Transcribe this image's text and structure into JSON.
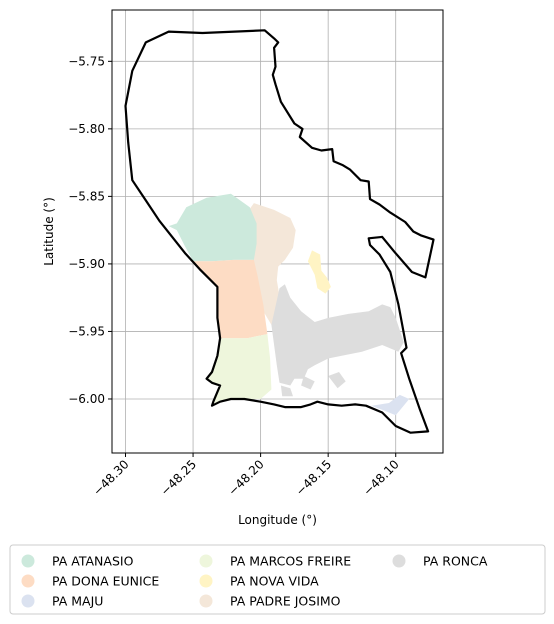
{
  "chart_data": {
    "type": "map",
    "title": "",
    "xlabel": "Longitude (°)",
    "ylabel": "Latitude (°)",
    "xlim": [
      -48.31,
      -48.065
    ],
    "ylim": [
      -6.04,
      -5.712
    ],
    "xticks": [
      {
        "value": -48.3,
        "label": "−48.30"
      },
      {
        "value": -48.25,
        "label": "−48.25"
      },
      {
        "value": -48.2,
        "label": "−48.20"
      },
      {
        "value": -48.15,
        "label": "−48.15"
      },
      {
        "value": -48.1,
        "label": "−48.10"
      }
    ],
    "yticks": [
      {
        "value": -5.75,
        "label": "−5.75"
      },
      {
        "value": -5.8,
        "label": "−5.80"
      },
      {
        "value": -5.85,
        "label": "−5.85"
      },
      {
        "value": -5.9,
        "label": "−5.90"
      },
      {
        "value": -5.95,
        "label": "−5.95"
      },
      {
        "value": -6.0,
        "label": "−6.00"
      }
    ],
    "grid": true,
    "legend_position": "bottom",
    "boundary": {
      "color": "#000000",
      "coords": [
        [
          -48.268,
          -5.728
        ],
        [
          -48.243,
          -5.729
        ],
        [
          -48.197,
          -5.727
        ],
        [
          -48.19,
          -5.733
        ],
        [
          -48.187,
          -5.736
        ],
        [
          -48.19,
          -5.74
        ],
        [
          -48.189,
          -5.754
        ],
        [
          -48.191,
          -5.76
        ],
        [
          -48.189,
          -5.767
        ],
        [
          -48.185,
          -5.78
        ],
        [
          -48.175,
          -5.796
        ],
        [
          -48.169,
          -5.8
        ],
        [
          -48.171,
          -5.806
        ],
        [
          -48.162,
          -5.814
        ],
        [
          -48.155,
          -5.816
        ],
        [
          -48.147,
          -5.815
        ],
        [
          -48.146,
          -5.824
        ],
        [
          -48.139,
          -5.827
        ],
        [
          -48.134,
          -5.83
        ],
        [
          -48.126,
          -5.838
        ],
        [
          -48.12,
          -5.839
        ],
        [
          -48.119,
          -5.852
        ],
        [
          -48.112,
          -5.856
        ],
        [
          -48.104,
          -5.862
        ],
        [
          -48.093,
          -5.869
        ],
        [
          -48.087,
          -5.876
        ],
        [
          -48.081,
          -5.879
        ],
        [
          -48.072,
          -5.882
        ],
        [
          -48.078,
          -5.91
        ],
        [
          -48.088,
          -5.906
        ],
        [
          -48.101,
          -5.891
        ],
        [
          -48.11,
          -5.88
        ],
        [
          -48.12,
          -5.881
        ],
        [
          -48.119,
          -5.886
        ],
        [
          -48.112,
          -5.893
        ],
        [
          -48.104,
          -5.906
        ],
        [
          -48.098,
          -5.93
        ],
        [
          -48.092,
          -5.962
        ],
        [
          -48.096,
          -5.966
        ],
        [
          -48.09,
          -5.985
        ],
        [
          -48.082,
          -6.008
        ],
        [
          -48.076,
          -6.024
        ],
        [
          -48.089,
          -6.025
        ],
        [
          -48.1,
          -6.02
        ],
        [
          -48.11,
          -6.01
        ],
        [
          -48.122,
          -6.005
        ],
        [
          -48.13,
          -6.004
        ],
        [
          -48.14,
          -6.005
        ],
        [
          -48.15,
          -6.004
        ],
        [
          -48.158,
          -6.002
        ],
        [
          -48.163,
          -6.004
        ],
        [
          -48.17,
          -6.006
        ],
        [
          -48.182,
          -6.006
        ],
        [
          -48.19,
          -6.004
        ],
        [
          -48.2,
          -6.002
        ],
        [
          -48.212,
          -6.0
        ],
        [
          -48.222,
          -6.0
        ],
        [
          -48.23,
          -6.002
        ],
        [
          -48.236,
          -6.005
        ],
        [
          -48.235,
          -6.002
        ],
        [
          -48.23,
          -5.99
        ],
        [
          -48.236,
          -5.988
        ],
        [
          -48.24,
          -5.985
        ],
        [
          -48.236,
          -5.98
        ],
        [
          -48.232,
          -5.968
        ],
        [
          -48.23,
          -5.955
        ],
        [
          -48.232,
          -5.94
        ],
        [
          -48.232,
          -5.917
        ],
        [
          -48.245,
          -5.904
        ],
        [
          -48.256,
          -5.892
        ],
        [
          -48.275,
          -5.868
        ],
        [
          -48.285,
          -5.853
        ],
        [
          -48.295,
          -5.838
        ],
        [
          -48.298,
          -5.81
        ],
        [
          -48.3,
          -5.783
        ],
        [
          -48.295,
          -5.757
        ],
        [
          -48.285,
          -5.736
        ]
      ]
    },
    "legend": [
      {
        "name": "PA ATANASIO",
        "color": "#cce9dc"
      },
      {
        "name": "PA DONA EUNICE",
        "color": "#fddcc4"
      },
      {
        "name": "PA MAJU",
        "color": "#dbe2f0"
      },
      {
        "name": "PA MARCOS FREIRE",
        "color": "#eef6dc"
      },
      {
        "name": "PA NOVA VIDA",
        "color": "#fff4c4"
      },
      {
        "name": "PA PADRE JOSIMO",
        "color": "#f4e7d9"
      },
      {
        "name": "PA RONCA",
        "color": "#dddddd"
      }
    ],
    "regions": [
      {
        "name": "PA PADRE JOSIMO",
        "color": "#f4e7d9",
        "coords": [
          [
            -48.205,
            -5.855
          ],
          [
            -48.19,
            -5.86
          ],
          [
            -48.178,
            -5.866
          ],
          [
            -48.174,
            -5.875
          ],
          [
            -48.176,
            -5.888
          ],
          [
            -48.182,
            -5.897
          ],
          [
            -48.187,
            -5.902
          ],
          [
            -48.188,
            -5.912
          ],
          [
            -48.185,
            -5.93
          ],
          [
            -48.192,
            -5.945
          ],
          [
            -48.198,
            -5.935
          ],
          [
            -48.202,
            -5.918
          ],
          [
            -48.205,
            -5.905
          ],
          [
            -48.206,
            -5.89
          ],
          [
            -48.208,
            -5.875
          ],
          [
            -48.21,
            -5.862
          ]
        ]
      },
      {
        "name": "PA ATANASIO",
        "color": "#cce9dc",
        "coords": [
          [
            -48.222,
            -5.848
          ],
          [
            -48.24,
            -5.851
          ],
          [
            -48.255,
            -5.858
          ],
          [
            -48.262,
            -5.87
          ],
          [
            -48.268,
            -5.872
          ],
          [
            -48.262,
            -5.875
          ],
          [
            -48.256,
            -5.887
          ],
          [
            -48.25,
            -5.898
          ],
          [
            -48.236,
            -5.898
          ],
          [
            -48.22,
            -5.897
          ],
          [
            -48.205,
            -5.897
          ],
          [
            -48.203,
            -5.885
          ],
          [
            -48.203,
            -5.87
          ],
          [
            -48.208,
            -5.858
          ]
        ]
      },
      {
        "name": "PA DONA EUNICE",
        "color": "#fddcc4",
        "coords": [
          [
            -48.25,
            -5.898
          ],
          [
            -48.236,
            -5.898
          ],
          [
            -48.22,
            -5.897
          ],
          [
            -48.205,
            -5.897
          ],
          [
            -48.202,
            -5.91
          ],
          [
            -48.198,
            -5.93
          ],
          [
            -48.195,
            -5.952
          ],
          [
            -48.21,
            -5.955
          ],
          [
            -48.23,
            -5.955
          ],
          [
            -48.232,
            -5.94
          ],
          [
            -48.232,
            -5.917
          ],
          [
            -48.245,
            -5.904
          ]
        ]
      },
      {
        "name": "PA MARCOS FREIRE",
        "color": "#eef6dc",
        "coords": [
          [
            -48.23,
            -5.955
          ],
          [
            -48.21,
            -5.955
          ],
          [
            -48.195,
            -5.952
          ],
          [
            -48.193,
            -5.97
          ],
          [
            -48.192,
            -5.993
          ],
          [
            -48.2,
            -6.0
          ],
          [
            -48.212,
            -6.0
          ],
          [
            -48.222,
            -6.0
          ],
          [
            -48.23,
            -6.002
          ],
          [
            -48.236,
            -6.005
          ],
          [
            -48.235,
            -6.002
          ],
          [
            -48.23,
            -5.99
          ],
          [
            -48.236,
            -5.988
          ],
          [
            -48.24,
            -5.985
          ],
          [
            -48.236,
            -5.98
          ],
          [
            -48.232,
            -5.968
          ]
        ]
      },
      {
        "name": "PA NOVA VIDA",
        "color": "#fff4c4",
        "coords": [
          [
            -48.162,
            -5.89
          ],
          [
            -48.156,
            -5.893
          ],
          [
            -48.155,
            -5.905
          ],
          [
            -48.151,
            -5.91
          ],
          [
            -48.148,
            -5.917
          ],
          [
            -48.152,
            -5.922
          ],
          [
            -48.158,
            -5.918
          ],
          [
            -48.16,
            -5.908
          ],
          [
            -48.165,
            -5.898
          ]
        ]
      },
      {
        "name": "PA RONCA",
        "color": "#dddddd",
        "coords": [
          [
            -48.192,
            -5.945
          ],
          [
            -48.19,
            -5.96
          ],
          [
            -48.188,
            -5.975
          ],
          [
            -48.186,
            -5.988
          ],
          [
            -48.178,
            -5.99
          ],
          [
            -48.175,
            -5.985
          ],
          [
            -48.168,
            -5.985
          ],
          [
            -48.165,
            -5.978
          ],
          [
            -48.16,
            -5.975
          ],
          [
            -48.15,
            -5.97
          ],
          [
            -48.14,
            -5.968
          ],
          [
            -48.125,
            -5.965
          ],
          [
            -48.11,
            -5.96
          ],
          [
            -48.098,
            -5.965
          ],
          [
            -48.094,
            -5.958
          ],
          [
            -48.1,
            -5.94
          ],
          [
            -48.104,
            -5.932
          ],
          [
            -48.11,
            -5.93
          ],
          [
            -48.12,
            -5.935
          ],
          [
            -48.135,
            -5.937
          ],
          [
            -48.15,
            -5.94
          ],
          [
            -48.16,
            -5.943
          ],
          [
            -48.17,
            -5.935
          ],
          [
            -48.178,
            -5.925
          ],
          [
            -48.182,
            -5.915
          ],
          [
            -48.186,
            -5.918
          ]
        ]
      },
      {
        "name": "PA RONCA",
        "color": "#dddddd",
        "coords": [
          [
            -48.185,
            -5.99
          ],
          [
            -48.178,
            -5.992
          ],
          [
            -48.176,
            -5.998
          ],
          [
            -48.184,
            -5.998
          ]
        ]
      },
      {
        "name": "PA RONCA",
        "color": "#dddddd",
        "coords": [
          [
            -48.168,
            -5.983
          ],
          [
            -48.16,
            -5.987
          ],
          [
            -48.163,
            -5.993
          ],
          [
            -48.17,
            -5.99
          ]
        ]
      },
      {
        "name": "PA RONCA",
        "color": "#dddddd",
        "coords": [
          [
            -48.15,
            -5.983
          ],
          [
            -48.142,
            -5.98
          ],
          [
            -48.137,
            -5.987
          ],
          [
            -48.143,
            -5.992
          ]
        ]
      },
      {
        "name": "PA MAJU",
        "color": "#dbe2f0",
        "coords": [
          [
            -48.118,
            -6.005
          ],
          [
            -48.11,
            -6.008
          ],
          [
            -48.1,
            -6.012
          ],
          [
            -48.095,
            -6.006
          ],
          [
            -48.09,
            -6.0
          ],
          [
            -48.097,
            -5.997
          ],
          [
            -48.105,
            -6.003
          ]
        ]
      }
    ]
  }
}
